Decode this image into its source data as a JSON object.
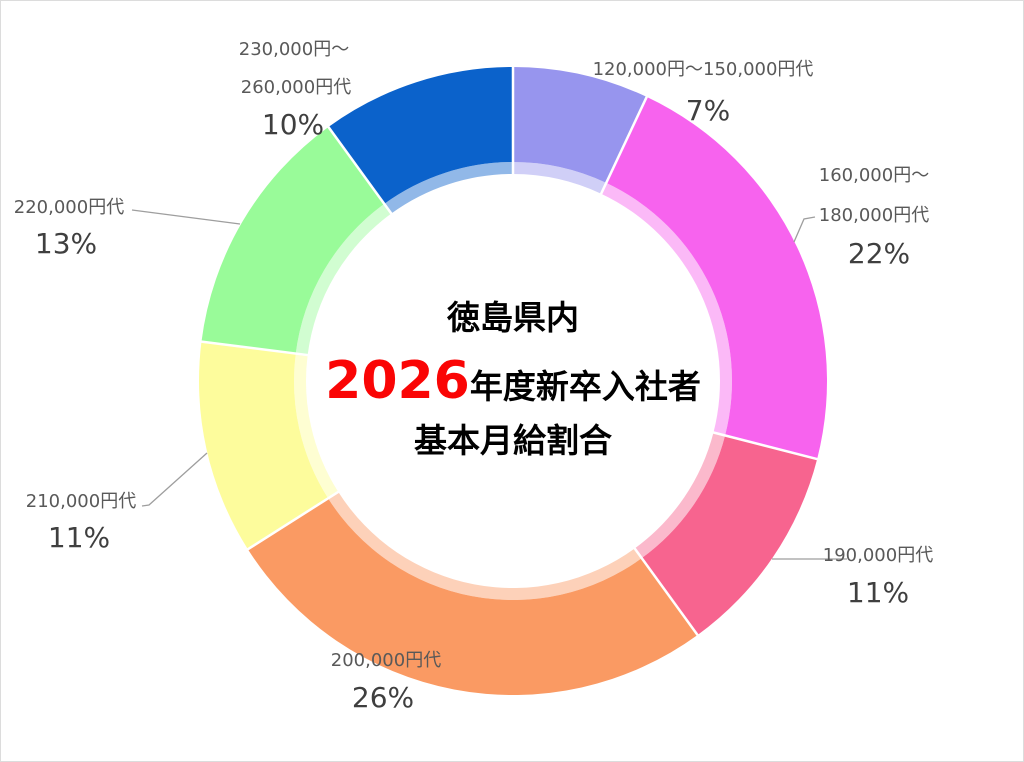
{
  "chart_data": {
    "type": "pie",
    "subtype": "donut",
    "title": {
      "line1": "徳島県内",
      "year": "2026",
      "year_color": "#fa0505",
      "line2_rest": "年度新卒入社者",
      "line3": "基本月給割合"
    },
    "categories": [
      "120,000円～150,000円代",
      "160,000円～180,000円代",
      "190,000円代",
      "200,000円代",
      "210,000円代",
      "220,000円代",
      "230,000円～260,000円代"
    ],
    "values": [
      7,
      22,
      11,
      26,
      11,
      13,
      10
    ],
    "unit": "%",
    "start_angle_deg": 0,
    "direction": "clockwise",
    "legend": "none",
    "label_color": "#595959",
    "pct_label_color": "#3f3f3f",
    "leader_line_color": "#9e9e9e",
    "background": "#ffffff",
    "border_color": "#dcdcdc",
    "segments": [
      {
        "label_lines": [
          "120,000円～150,000円代"
        ],
        "pct_label": "7%",
        "value": 7,
        "color": "#9795ee"
      },
      {
        "label_lines": [
          "160,000円～",
          "180,000円代"
        ],
        "pct_label": "22%",
        "value": 22,
        "color": "#f763ee"
      },
      {
        "label_lines": [
          "190,000円代"
        ],
        "pct_label": "11%",
        "value": 11,
        "color": "#f7648f"
      },
      {
        "label_lines": [
          "200,000円代"
        ],
        "pct_label": "26%",
        "value": 26,
        "color": "#fa9a63"
      },
      {
        "label_lines": [
          "210,000円代"
        ],
        "pct_label": "11%",
        "value": 11,
        "color": "#fdfc9c"
      },
      {
        "label_lines": [
          "220,000円代"
        ],
        "pct_label": "13%",
        "value": 13,
        "color": "#99fb99"
      },
      {
        "label_lines": [
          "230,000円～",
          "260,000円代"
        ],
        "pct_label": "10%",
        "value": 10,
        "color": "#0b62cb"
      }
    ]
  }
}
